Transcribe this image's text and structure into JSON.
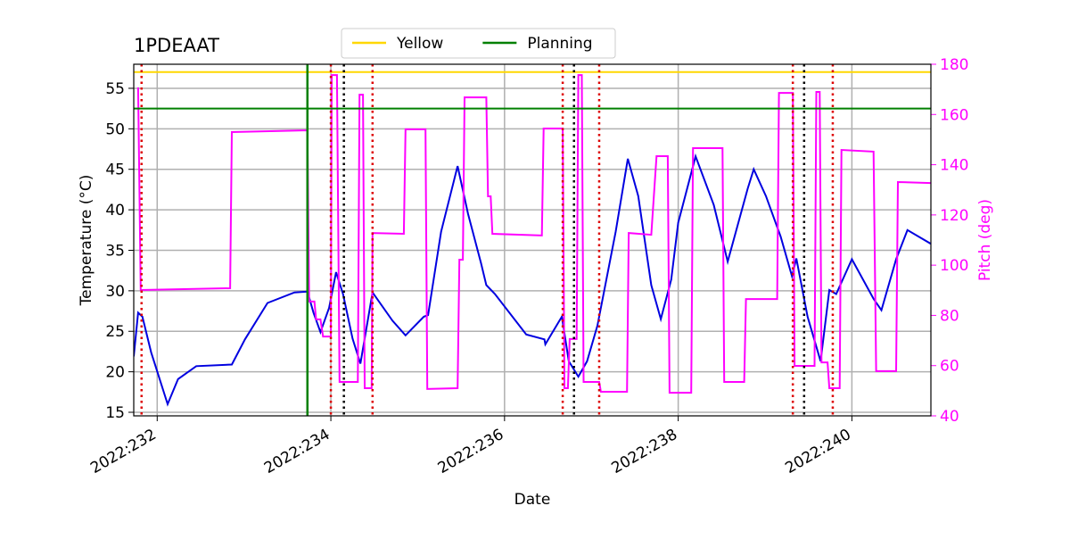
{
  "chart_data": {
    "type": "line",
    "title": "1PDEAAT",
    "xlabel": "Date",
    "ylabel": "Temperature (°C)",
    "y2label": "Pitch (deg)",
    "xlim": [
      231.73,
      240.91
    ],
    "xticks": [
      {
        "value": 232,
        "label": "2022:232"
      },
      {
        "value": 234,
        "label": "2022:234"
      },
      {
        "value": 236,
        "label": "2022:236"
      },
      {
        "value": 238,
        "label": "2022:238"
      },
      {
        "value": 240,
        "label": "2022:240"
      }
    ],
    "ylim": [
      14.56,
      57.97
    ],
    "yticks": [
      15,
      20,
      25,
      30,
      35,
      40,
      45,
      50,
      55
    ],
    "y2lim": [
      40,
      180
    ],
    "y2ticks": [
      40,
      60,
      80,
      100,
      120,
      140,
      160,
      180
    ],
    "y2color": "#ff00ff",
    "grid": true,
    "legend": "upper center",
    "hlines": [
      {
        "name": "Yellow",
        "value": 57.0,
        "color": "#ffd700"
      },
      {
        "name": "Planning",
        "value": 52.5,
        "color": "#008000"
      }
    ],
    "vlines": [
      {
        "color": "#008000",
        "dash": "solid",
        "x": [
          233.73
        ]
      },
      {
        "color": "#dd0000",
        "dash": "dotted",
        "x": [
          231.82,
          234.0,
          234.48,
          236.67,
          237.09,
          239.32,
          239.78
        ]
      },
      {
        "color": "#000000",
        "dash": "dotted",
        "x": [
          234.15,
          236.8,
          239.45
        ]
      }
    ],
    "series": [
      {
        "color": "#0000e0",
        "x": [
          231.73,
          231.78,
          231.83,
          231.93,
          232.12,
          232.24,
          232.45,
          232.86,
          233.01,
          233.27,
          233.58,
          233.73,
          233.8,
          233.88,
          233.98,
          234.06,
          234.14,
          234.25,
          234.34,
          234.48,
          234.71,
          234.86,
          235.07,
          235.12,
          235.27,
          235.46,
          235.58,
          235.73,
          235.79,
          235.89,
          236.25,
          236.46,
          236.47,
          236.66,
          236.74,
          236.85,
          236.95,
          237.07,
          237.28,
          237.42,
          237.54,
          237.69,
          237.8,
          237.92,
          238.0,
          238.2,
          238.41,
          238.57,
          238.8,
          238.87,
          239.01,
          239.18,
          239.31,
          239.36,
          239.49,
          239.64,
          239.74,
          239.82,
          240.0,
          240.25,
          240.34,
          240.51,
          240.64,
          240.91
        ],
        "values": [
          21.9,
          27.3,
          26.8,
          22.4,
          16.0,
          19.1,
          20.7,
          20.9,
          24.0,
          28.5,
          29.8,
          29.9,
          27.3,
          24.9,
          27.9,
          32.3,
          29.6,
          24.1,
          21.0,
          29.8,
          26.3,
          24.5,
          26.8,
          27.0,
          37.3,
          45.4,
          39.5,
          33.4,
          30.7,
          29.6,
          24.6,
          24.0,
          23.4,
          26.8,
          21.3,
          19.4,
          21.3,
          25.7,
          37.3,
          46.3,
          41.7,
          30.7,
          26.5,
          31.4,
          38.4,
          46.6,
          40.6,
          33.6,
          42.6,
          45.0,
          41.7,
          36.7,
          31.8,
          34.0,
          26.8,
          21.3,
          30.1,
          29.6,
          33.9,
          29.0,
          27.6,
          33.9,
          37.5,
          35.8
        ]
      },
      {
        "color": "#ff00ff",
        "axis": "y2",
        "x": [
          231.78,
          231.81,
          232.84,
          232.86,
          233.73,
          233.75,
          233.81,
          233.83,
          233.88,
          233.91,
          234.0,
          234.01,
          234.07,
          234.1,
          234.31,
          234.33,
          234.37,
          234.39,
          234.47,
          234.48,
          234.84,
          234.86,
          235.09,
          235.11,
          235.46,
          235.48,
          235.52,
          235.54,
          235.79,
          235.81,
          235.84,
          235.86,
          236.43,
          236.45,
          236.67,
          236.69,
          236.73,
          236.75,
          236.83,
          236.85,
          236.89,
          236.91,
          237.09,
          237.11,
          237.41,
          237.43,
          237.69,
          237.75,
          237.88,
          237.9,
          238.15,
          238.17,
          238.51,
          238.53,
          238.76,
          238.78,
          239.14,
          239.16,
          239.32,
          239.34,
          239.57,
          239.59,
          239.63,
          239.65,
          239.72,
          239.74,
          239.86,
          239.88,
          240.25,
          240.28,
          240.51,
          240.53,
          240.91
        ],
        "values": [
          170.8,
          90.1,
          90.8,
          153.0,
          153.7,
          85.5,
          85.5,
          78.4,
          78.4,
          71.6,
          71.6,
          175.7,
          175.7,
          53.5,
          53.5,
          167.9,
          167.9,
          51.0,
          51.0,
          112.8,
          112.5,
          154.1,
          154.1,
          50.7,
          51.0,
          102.2,
          102.2,
          166.8,
          166.8,
          127.4,
          127.4,
          112.5,
          111.8,
          154.4,
          154.4,
          51.0,
          51.0,
          70.6,
          70.6,
          175.7,
          175.7,
          53.5,
          53.5,
          49.6,
          49.6,
          112.8,
          112.1,
          143.4,
          143.4,
          49.2,
          49.2,
          146.6,
          146.6,
          53.5,
          53.5,
          86.5,
          86.5,
          168.6,
          168.6,
          59.9,
          59.9,
          169.0,
          169.0,
          61.3,
          61.3,
          51.0,
          51.0,
          145.9,
          145.2,
          57.8,
          57.8,
          133.1,
          132.7
        ]
      }
    ]
  }
}
